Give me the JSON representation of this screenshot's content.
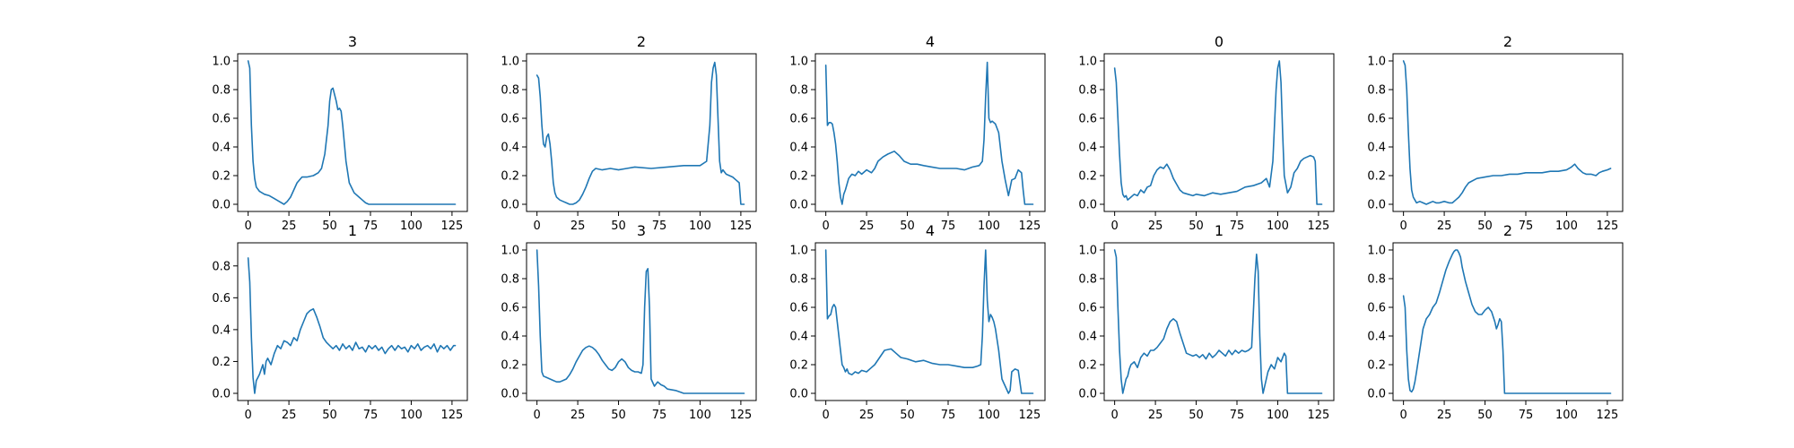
{
  "figure": {
    "line_color": "#1f77b4"
  },
  "chart_data": [
    {
      "type": "line",
      "title": "3",
      "xlim": [
        -6.4,
        134.4
      ],
      "ylim": [
        -0.05,
        1.05
      ],
      "xticks": [
        0,
        25,
        50,
        75,
        100,
        125
      ],
      "yticks": [
        0.0,
        0.2,
        0.4,
        0.6,
        0.8,
        1.0
      ],
      "ytick_labels": [
        "0.0",
        "0.2",
        "0.4",
        "0.6",
        "0.8",
        "1.0"
      ],
      "x": [
        0,
        1,
        2,
        3,
        4,
        5,
        7,
        10,
        13,
        16,
        19,
        22,
        24,
        26,
        28,
        30,
        33,
        36,
        40,
        43,
        45,
        47,
        49,
        50,
        51,
        52,
        54,
        55,
        56,
        57,
        58,
        60,
        62,
        65,
        68,
        70,
        72,
        74,
        76,
        80,
        90,
        100,
        110,
        120,
        127
      ],
      "y": [
        1.0,
        0.95,
        0.55,
        0.3,
        0.18,
        0.12,
        0.09,
        0.07,
        0.06,
        0.04,
        0.02,
        0.0,
        0.02,
        0.05,
        0.1,
        0.15,
        0.19,
        0.19,
        0.2,
        0.22,
        0.25,
        0.35,
        0.55,
        0.72,
        0.8,
        0.81,
        0.72,
        0.66,
        0.67,
        0.65,
        0.55,
        0.3,
        0.15,
        0.08,
        0.05,
        0.03,
        0.01,
        0.0,
        0.0,
        0.0,
        0.0,
        0.0,
        0.0,
        0.0,
        0.0
      ]
    },
    {
      "type": "line",
      "title": "2",
      "xlim": [
        -6.4,
        134.4
      ],
      "ylim": [
        -0.05,
        1.05
      ],
      "xticks": [
        0,
        25,
        50,
        75,
        100,
        125
      ],
      "yticks": [
        0.0,
        0.2,
        0.4,
        0.6,
        0.8,
        1.0
      ],
      "ytick_labels": [
        "0.0",
        "0.2",
        "0.4",
        "0.6",
        "0.8",
        "1.0"
      ],
      "x": [
        0,
        1,
        2,
        3,
        4,
        5,
        6,
        7,
        8,
        9,
        10,
        11,
        12,
        14,
        16,
        18,
        20,
        22,
        24,
        26,
        28,
        30,
        32,
        34,
        36,
        40,
        45,
        50,
        55,
        60,
        70,
        80,
        90,
        100,
        104,
        106,
        107,
        108,
        109,
        110,
        111,
        112,
        113,
        114,
        116,
        118,
        120,
        122,
        124,
        125,
        126,
        127
      ],
      "y": [
        0.9,
        0.88,
        0.75,
        0.55,
        0.42,
        0.4,
        0.47,
        0.49,
        0.42,
        0.3,
        0.15,
        0.08,
        0.05,
        0.03,
        0.02,
        0.01,
        0.0,
        0.0,
        0.01,
        0.03,
        0.07,
        0.12,
        0.18,
        0.23,
        0.25,
        0.24,
        0.25,
        0.24,
        0.25,
        0.26,
        0.25,
        0.26,
        0.27,
        0.27,
        0.3,
        0.55,
        0.85,
        0.95,
        0.99,
        0.9,
        0.6,
        0.3,
        0.22,
        0.24,
        0.21,
        0.2,
        0.19,
        0.17,
        0.15,
        0.0,
        0.0,
        0.0
      ]
    },
    {
      "type": "line",
      "title": "4",
      "xlim": [
        -6.4,
        134.4
      ],
      "ylim": [
        -0.05,
        1.05
      ],
      "xticks": [
        0,
        25,
        50,
        75,
        100,
        125
      ],
      "yticks": [
        0.0,
        0.2,
        0.4,
        0.6,
        0.8,
        1.0
      ],
      "ytick_labels": [
        "0.0",
        "0.2",
        "0.4",
        "0.6",
        "0.8",
        "1.0"
      ],
      "x": [
        0,
        1,
        2,
        3,
        4,
        5,
        6,
        7,
        8,
        9,
        10,
        11,
        12,
        14,
        16,
        18,
        20,
        22,
        25,
        28,
        30,
        32,
        35,
        38,
        42,
        45,
        48,
        52,
        56,
        60,
        65,
        70,
        75,
        80,
        85,
        90,
        94,
        96,
        97,
        98,
        99,
        100,
        101,
        102,
        104,
        106,
        108,
        110,
        112,
        114,
        116,
        118,
        120,
        121,
        122,
        123,
        124,
        125,
        126,
        127
      ],
      "y": [
        0.97,
        0.55,
        0.57,
        0.57,
        0.56,
        0.5,
        0.42,
        0.3,
        0.15,
        0.05,
        0.0,
        0.07,
        0.1,
        0.18,
        0.21,
        0.2,
        0.23,
        0.21,
        0.24,
        0.22,
        0.25,
        0.3,
        0.33,
        0.35,
        0.37,
        0.34,
        0.3,
        0.28,
        0.28,
        0.27,
        0.26,
        0.25,
        0.25,
        0.25,
        0.24,
        0.26,
        0.27,
        0.3,
        0.45,
        0.75,
        0.99,
        0.6,
        0.57,
        0.58,
        0.56,
        0.5,
        0.3,
        0.17,
        0.06,
        0.17,
        0.18,
        0.24,
        0.22,
        0.1,
        0.0,
        0.0,
        0.0,
        0.0,
        0.0,
        0.0
      ]
    },
    {
      "type": "line",
      "title": "0",
      "xlim": [
        -6.4,
        134.4
      ],
      "ylim": [
        -0.05,
        1.05
      ],
      "xticks": [
        0,
        25,
        50,
        75,
        100,
        125
      ],
      "yticks": [
        0.0,
        0.2,
        0.4,
        0.6,
        0.8,
        1.0
      ],
      "ytick_labels": [
        "0.0",
        "0.2",
        "0.4",
        "0.6",
        "0.8",
        "1.0"
      ],
      "x": [
        0,
        1,
        2,
        3,
        4,
        5,
        6,
        7,
        8,
        10,
        12,
        14,
        16,
        18,
        20,
        22,
        24,
        26,
        28,
        30,
        32,
        34,
        36,
        38,
        40,
        42,
        45,
        48,
        50,
        55,
        60,
        65,
        70,
        75,
        80,
        85,
        90,
        93,
        95,
        97,
        98,
        99,
        100,
        101,
        102,
        103,
        104,
        106,
        108,
        110,
        112,
        114,
        116,
        118,
        120,
        122,
        123,
        124,
        125,
        126,
        127
      ],
      "y": [
        0.95,
        0.85,
        0.6,
        0.35,
        0.15,
        0.07,
        0.05,
        0.06,
        0.03,
        0.05,
        0.07,
        0.06,
        0.1,
        0.08,
        0.12,
        0.13,
        0.2,
        0.24,
        0.26,
        0.25,
        0.28,
        0.24,
        0.18,
        0.14,
        0.1,
        0.08,
        0.07,
        0.06,
        0.07,
        0.06,
        0.08,
        0.07,
        0.08,
        0.09,
        0.12,
        0.13,
        0.15,
        0.18,
        0.12,
        0.3,
        0.55,
        0.8,
        0.95,
        1.0,
        0.85,
        0.5,
        0.2,
        0.08,
        0.12,
        0.22,
        0.25,
        0.3,
        0.32,
        0.33,
        0.34,
        0.33,
        0.3,
        0.0,
        0.0,
        0.0,
        0.0
      ]
    },
    {
      "type": "line",
      "title": "2",
      "xlim": [
        -6.4,
        134.4
      ],
      "ylim": [
        -0.05,
        1.05
      ],
      "xticks": [
        0,
        25,
        50,
        75,
        100,
        125
      ],
      "yticks": [
        0.0,
        0.2,
        0.4,
        0.6,
        0.8,
        1.0
      ],
      "ytick_labels": [
        "0.0",
        "0.2",
        "0.4",
        "0.6",
        "0.8",
        "1.0"
      ],
      "x": [
        0,
        1,
        2,
        3,
        4,
        5,
        6,
        7,
        8,
        10,
        12,
        14,
        16,
        18,
        20,
        22,
        25,
        28,
        30,
        32,
        34,
        36,
        38,
        40,
        45,
        50,
        55,
        60,
        65,
        70,
        75,
        80,
        85,
        90,
        95,
        100,
        103,
        105,
        107,
        110,
        112,
        115,
        118,
        120,
        122,
        125,
        127
      ],
      "y": [
        1.0,
        0.97,
        0.8,
        0.5,
        0.25,
        0.1,
        0.05,
        0.03,
        0.01,
        0.02,
        0.01,
        0.0,
        0.01,
        0.02,
        0.01,
        0.01,
        0.02,
        0.01,
        0.01,
        0.03,
        0.05,
        0.08,
        0.12,
        0.15,
        0.18,
        0.19,
        0.2,
        0.2,
        0.21,
        0.21,
        0.22,
        0.22,
        0.22,
        0.23,
        0.23,
        0.24,
        0.26,
        0.28,
        0.25,
        0.22,
        0.21,
        0.21,
        0.2,
        0.22,
        0.23,
        0.24,
        0.25
      ]
    },
    {
      "type": "line",
      "title": "1",
      "xlim": [
        -6.4,
        134.4
      ],
      "ylim": [
        -0.045,
        0.945
      ],
      "xticks": [
        0,
        25,
        50,
        75,
        100,
        125
      ],
      "yticks": [
        0.0,
        0.2,
        0.4,
        0.6,
        0.8
      ],
      "ytick_labels": [
        "0.0",
        "0.2",
        "0.4",
        "0.6",
        "0.8"
      ],
      "x": [
        0,
        1,
        2,
        3,
        4,
        5,
        6,
        7,
        8,
        9,
        10,
        11,
        12,
        14,
        16,
        18,
        20,
        22,
        24,
        26,
        28,
        30,
        32,
        34,
        36,
        38,
        40,
        42,
        44,
        46,
        48,
        50,
        52,
        54,
        56,
        58,
        60,
        62,
        64,
        66,
        68,
        70,
        72,
        74,
        76,
        78,
        80,
        82,
        84,
        86,
        88,
        90,
        92,
        94,
        96,
        98,
        100,
        102,
        104,
        106,
        108,
        110,
        112,
        114,
        116,
        118,
        120,
        122,
        124,
        126,
        127
      ],
      "y": [
        0.85,
        0.7,
        0.35,
        0.1,
        0.0,
        0.08,
        0.1,
        0.12,
        0.15,
        0.18,
        0.12,
        0.2,
        0.22,
        0.18,
        0.25,
        0.3,
        0.28,
        0.33,
        0.32,
        0.3,
        0.35,
        0.33,
        0.4,
        0.45,
        0.5,
        0.52,
        0.53,
        0.48,
        0.42,
        0.35,
        0.32,
        0.3,
        0.28,
        0.3,
        0.27,
        0.31,
        0.28,
        0.3,
        0.27,
        0.32,
        0.28,
        0.29,
        0.26,
        0.3,
        0.28,
        0.3,
        0.27,
        0.29,
        0.25,
        0.28,
        0.3,
        0.27,
        0.3,
        0.28,
        0.29,
        0.26,
        0.3,
        0.28,
        0.31,
        0.27,
        0.29,
        0.3,
        0.28,
        0.31,
        0.26,
        0.3,
        0.28,
        0.3,
        0.27,
        0.3,
        0.3
      ]
    },
    {
      "type": "line",
      "title": "3",
      "xlim": [
        -6.4,
        134.4
      ],
      "ylim": [
        -0.05,
        1.05
      ],
      "xticks": [
        0,
        25,
        50,
        75,
        100,
        125
      ],
      "yticks": [
        0.0,
        0.2,
        0.4,
        0.6,
        0.8,
        1.0
      ],
      "ytick_labels": [
        "0.0",
        "0.2",
        "0.4",
        "0.6",
        "0.8",
        "1.0"
      ],
      "x": [
        0,
        1,
        2,
        3,
        4,
        6,
        8,
        10,
        12,
        14,
        16,
        18,
        20,
        22,
        24,
        26,
        28,
        30,
        32,
        34,
        36,
        38,
        40,
        42,
        44,
        46,
        48,
        50,
        52,
        54,
        56,
        58,
        60,
        62,
        64,
        65,
        66,
        67,
        68,
        69,
        70,
        72,
        74,
        75,
        76,
        78,
        80,
        85,
        90,
        100,
        110,
        120,
        127
      ],
      "y": [
        1.0,
        0.75,
        0.4,
        0.15,
        0.12,
        0.11,
        0.1,
        0.09,
        0.08,
        0.08,
        0.09,
        0.1,
        0.13,
        0.17,
        0.22,
        0.26,
        0.3,
        0.32,
        0.33,
        0.32,
        0.3,
        0.27,
        0.23,
        0.2,
        0.17,
        0.16,
        0.18,
        0.22,
        0.24,
        0.22,
        0.18,
        0.16,
        0.15,
        0.15,
        0.14,
        0.2,
        0.6,
        0.85,
        0.87,
        0.6,
        0.1,
        0.05,
        0.08,
        0.07,
        0.06,
        0.05,
        0.03,
        0.02,
        0.0,
        0.0,
        0.0,
        0.0,
        0.0
      ]
    },
    {
      "type": "line",
      "title": "4",
      "xlim": [
        -6.4,
        134.4
      ],
      "ylim": [
        -0.05,
        1.05
      ],
      "xticks": [
        0,
        25,
        50,
        75,
        100,
        125
      ],
      "yticks": [
        0.0,
        0.2,
        0.4,
        0.6,
        0.8,
        1.0
      ],
      "ytick_labels": [
        "0.0",
        "0.2",
        "0.4",
        "0.6",
        "0.8",
        "1.0"
      ],
      "x": [
        0,
        1,
        2,
        3,
        4,
        5,
        6,
        7,
        8,
        9,
        10,
        11,
        12,
        13,
        14,
        16,
        18,
        20,
        22,
        25,
        28,
        30,
        33,
        36,
        40,
        43,
        46,
        50,
        55,
        60,
        65,
        70,
        75,
        80,
        85,
        90,
        93,
        95,
        96,
        97,
        98,
        99,
        100,
        101,
        102,
        103,
        104,
        106,
        108,
        110,
        112,
        113,
        114,
        116,
        118,
        120,
        122,
        125,
        127
      ],
      "y": [
        1.0,
        0.52,
        0.54,
        0.55,
        0.6,
        0.62,
        0.6,
        0.5,
        0.4,
        0.3,
        0.2,
        0.18,
        0.15,
        0.17,
        0.14,
        0.13,
        0.15,
        0.14,
        0.16,
        0.15,
        0.18,
        0.2,
        0.25,
        0.3,
        0.31,
        0.28,
        0.25,
        0.24,
        0.22,
        0.23,
        0.21,
        0.2,
        0.2,
        0.19,
        0.18,
        0.18,
        0.19,
        0.2,
        0.4,
        0.75,
        1.0,
        0.65,
        0.5,
        0.55,
        0.53,
        0.5,
        0.45,
        0.3,
        0.1,
        0.05,
        0.0,
        0.02,
        0.15,
        0.17,
        0.16,
        0.0,
        0.0,
        0.0,
        0.0
      ]
    },
    {
      "type": "line",
      "title": "1",
      "xlim": [
        -6.4,
        134.4
      ],
      "ylim": [
        -0.05,
        1.05
      ],
      "xticks": [
        0,
        25,
        50,
        75,
        100,
        125
      ],
      "yticks": [
        0.0,
        0.2,
        0.4,
        0.6,
        0.8,
        1.0
      ],
      "ytick_labels": [
        "0.0",
        "0.2",
        "0.4",
        "0.6",
        "0.8",
        "1.0"
      ],
      "x": [
        0,
        1,
        2,
        3,
        4,
        5,
        6,
        7,
        8,
        9,
        10,
        12,
        14,
        16,
        18,
        20,
        22,
        24,
        26,
        28,
        30,
        32,
        34,
        36,
        38,
        40,
        42,
        44,
        46,
        48,
        50,
        52,
        54,
        56,
        58,
        60,
        62,
        64,
        66,
        68,
        70,
        72,
        74,
        76,
        78,
        80,
        82,
        84,
        85,
        86,
        87,
        88,
        89,
        90,
        91,
        92,
        93,
        94,
        96,
        98,
        100,
        102,
        104,
        105,
        106,
        108,
        110,
        115,
        120,
        125,
        127
      ],
      "y": [
        1.0,
        0.95,
        0.6,
        0.3,
        0.1,
        0.0,
        0.05,
        0.1,
        0.12,
        0.17,
        0.2,
        0.22,
        0.18,
        0.25,
        0.28,
        0.26,
        0.3,
        0.3,
        0.32,
        0.35,
        0.38,
        0.45,
        0.5,
        0.52,
        0.5,
        0.42,
        0.35,
        0.28,
        0.27,
        0.26,
        0.27,
        0.25,
        0.27,
        0.24,
        0.28,
        0.25,
        0.27,
        0.3,
        0.28,
        0.26,
        0.3,
        0.27,
        0.3,
        0.28,
        0.3,
        0.29,
        0.3,
        0.32,
        0.55,
        0.8,
        0.97,
        0.85,
        0.4,
        0.1,
        0.0,
        0.05,
        0.1,
        0.15,
        0.2,
        0.17,
        0.25,
        0.22,
        0.28,
        0.26,
        0.0,
        0.0,
        0.0,
        0.0,
        0.0,
        0.0,
        0.0
      ]
    },
    {
      "type": "line",
      "title": "2",
      "xlim": [
        -6.4,
        134.4
      ],
      "ylim": [
        -0.05,
        1.05
      ],
      "xticks": [
        0,
        25,
        50,
        75,
        100,
        125
      ],
      "yticks": [
        0.0,
        0.2,
        0.4,
        0.6,
        0.8,
        1.0
      ],
      "ytick_labels": [
        "0.0",
        "0.2",
        "0.4",
        "0.6",
        "0.8",
        "1.0"
      ],
      "x": [
        0,
        1,
        2,
        3,
        4,
        5,
        6,
        7,
        8,
        10,
        12,
        14,
        16,
        18,
        20,
        22,
        24,
        26,
        28,
        30,
        31,
        32,
        33,
        34,
        35,
        36,
        38,
        40,
        42,
        44,
        46,
        48,
        50,
        52,
        54,
        56,
        57,
        58,
        59,
        60,
        61,
        62,
        63,
        65,
        70,
        80,
        90,
        100,
        110,
        120,
        127
      ],
      "y": [
        0.68,
        0.6,
        0.3,
        0.1,
        0.02,
        0.01,
        0.03,
        0.08,
        0.15,
        0.3,
        0.45,
        0.52,
        0.55,
        0.6,
        0.63,
        0.7,
        0.78,
        0.86,
        0.92,
        0.97,
        0.99,
        1.0,
        1.0,
        0.98,
        0.95,
        0.88,
        0.78,
        0.7,
        0.62,
        0.57,
        0.55,
        0.55,
        0.58,
        0.6,
        0.57,
        0.5,
        0.45,
        0.48,
        0.52,
        0.5,
        0.3,
        0.0,
        0.0,
        0.0,
        0.0,
        0.0,
        0.0,
        0.0,
        0.0,
        0.0,
        0.0
      ]
    }
  ]
}
